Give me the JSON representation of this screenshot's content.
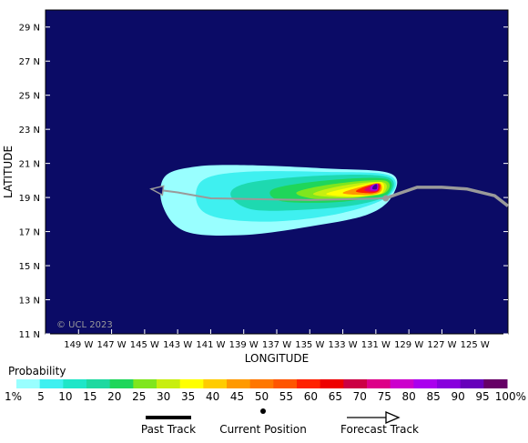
{
  "map": {
    "xlabel": "LONGITUDE",
    "ylabel": "LATITUDE",
    "background_color": "#0b0b66",
    "copyright": "© UCL 2023",
    "lon_range": [
      -151,
      -123
    ],
    "lat_range": [
      11,
      30
    ],
    "lon_ticks": [
      {
        "value": -149,
        "label": "149 W"
      },
      {
        "value": -147,
        "label": "147 W"
      },
      {
        "value": -145,
        "label": "145 W"
      },
      {
        "value": -143,
        "label": "143 W"
      },
      {
        "value": -141,
        "label": "141 W"
      },
      {
        "value": -139,
        "label": "139 W"
      },
      {
        "value": -137,
        "label": "137 W"
      },
      {
        "value": -135,
        "label": "135 W"
      },
      {
        "value": -133,
        "label": "133 W"
      },
      {
        "value": -131,
        "label": "131 W"
      },
      {
        "value": -129,
        "label": "129 W"
      },
      {
        "value": -127,
        "label": "127 W"
      },
      {
        "value": -125,
        "label": "125 W"
      }
    ],
    "lat_ticks": [
      {
        "value": 11,
        "label": "11 N"
      },
      {
        "value": 13,
        "label": "13 N"
      },
      {
        "value": 15,
        "label": "15 N"
      },
      {
        "value": 17,
        "label": "17 N"
      },
      {
        "value": 19,
        "label": "19 N"
      },
      {
        "value": 21,
        "label": "21 N"
      },
      {
        "value": 23,
        "label": "23 N"
      },
      {
        "value": 25,
        "label": "25 N"
      },
      {
        "value": 27,
        "label": "27 N"
      },
      {
        "value": 29,
        "label": "29 N"
      }
    ]
  },
  "chart_data": {
    "type": "heatmap",
    "xlabel": "LONGITUDE",
    "ylabel": "LATITUDE",
    "xlim": [
      -151,
      -123
    ],
    "ylim": [
      11,
      30
    ],
    "probability_contours": [
      {
        "level": 1,
        "color": "#99ffff",
        "outline": [
          [
            -130,
            19.1
          ],
          [
            -130.1,
            20.4
          ],
          [
            -134,
            20.7
          ],
          [
            -139,
            20.9
          ],
          [
            -142,
            20.8
          ],
          [
            -143.8,
            20.2
          ],
          [
            -143.9,
            18.5
          ],
          [
            -142.5,
            17.0
          ],
          [
            -139,
            16.8
          ],
          [
            -135,
            17.3
          ],
          [
            -131.5,
            18.0
          ]
        ]
      },
      {
        "level": 10,
        "color": "#3ff0f0",
        "outline": [
          [
            -130.2,
            19.1
          ],
          [
            -130.2,
            20.3
          ],
          [
            -134,
            20.5
          ],
          [
            -139,
            20.5
          ],
          [
            -141.5,
            20.0
          ],
          [
            -141.8,
            18.6
          ],
          [
            -140.5,
            17.8
          ],
          [
            -137,
            17.6
          ],
          [
            -133,
            18.1
          ]
        ]
      },
      {
        "level": 15,
        "color": "#1ed9b0",
        "outline": [
          [
            -130.2,
            19.2
          ],
          [
            -130.3,
            20.2
          ],
          [
            -134,
            20.3
          ],
          [
            -138.5,
            19.9
          ],
          [
            -139.8,
            19.2
          ],
          [
            -138.5,
            18.3
          ],
          [
            -135,
            18.3
          ],
          [
            -132,
            18.6
          ]
        ]
      },
      {
        "level": 20,
        "color": "#1fd65a",
        "outline": [
          [
            -130.3,
            19.2
          ],
          [
            -130.4,
            20.1
          ],
          [
            -134,
            20.0
          ],
          [
            -137.2,
            19.5
          ],
          [
            -136.8,
            18.8
          ],
          [
            -134,
            18.7
          ],
          [
            -131.8,
            18.9
          ]
        ]
      },
      {
        "level": 25,
        "color": "#7fe61e",
        "outline": [
          [
            -130.4,
            19.3
          ],
          [
            -130.5,
            20.0
          ],
          [
            -133.5,
            19.8
          ],
          [
            -135.8,
            19.3
          ],
          [
            -134.5,
            18.9
          ],
          [
            -132,
            19.0
          ]
        ]
      },
      {
        "level": 30,
        "color": "#c8ee10",
        "outline": [
          [
            -130.5,
            19.3
          ],
          [
            -130.6,
            19.9
          ],
          [
            -133,
            19.7
          ],
          [
            -134.8,
            19.2
          ],
          [
            -133,
            19.0
          ],
          [
            -131.5,
            19.1
          ]
        ]
      },
      {
        "level": 35,
        "color": "#ffff00",
        "outline": [
          [
            -130.6,
            19.3
          ],
          [
            -130.7,
            19.9
          ],
          [
            -132.5,
            19.6
          ],
          [
            -134.0,
            19.2
          ],
          [
            -132.3,
            19.05
          ],
          [
            -131.2,
            19.15
          ]
        ]
      },
      {
        "level": 45,
        "color": "#ff9900",
        "outline": [
          [
            -130.7,
            19.35
          ],
          [
            -130.8,
            19.85
          ],
          [
            -132.0,
            19.6
          ],
          [
            -133.0,
            19.25
          ],
          [
            -131.5,
            19.15
          ]
        ]
      },
      {
        "level": 55,
        "color": "#ff2200",
        "outline": [
          [
            -130.8,
            19.4
          ],
          [
            -130.8,
            19.8
          ],
          [
            -131.6,
            19.65
          ],
          [
            -132.2,
            19.35
          ],
          [
            -131.3,
            19.25
          ]
        ]
      },
      {
        "level": 65,
        "color": "#dd0066",
        "outline": [
          [
            -130.85,
            19.45
          ],
          [
            -130.85,
            19.8
          ],
          [
            -131.4,
            19.65
          ],
          [
            -131.7,
            19.42
          ],
          [
            -131.2,
            19.33
          ]
        ]
      },
      {
        "level": 80,
        "color": "#aa00ee",
        "outline": [
          [
            -130.9,
            19.45
          ],
          [
            -130.9,
            19.8
          ],
          [
            -131.25,
            19.7
          ],
          [
            -131.35,
            19.45
          ],
          [
            -131.1,
            19.4
          ]
        ]
      },
      {
        "level": 95,
        "color": "#440099",
        "outline": [
          [
            -130.95,
            19.5
          ],
          [
            -130.95,
            19.78
          ],
          [
            -131.15,
            19.68
          ],
          [
            -131.2,
            19.5
          ]
        ]
      }
    ],
    "past_track": [
      [
        -123,
        18.5
      ],
      [
        -123.8,
        19.1
      ],
      [
        -125.5,
        19.5
      ],
      [
        -127,
        19.6
      ],
      [
        -128.5,
        19.6
      ],
      [
        -129.7,
        19.2
      ],
      [
        -130.4,
        18.95
      ]
    ],
    "current_position": [
      -130.4,
      18.95
    ],
    "forecast_track": [
      [
        -130.4,
        18.95
      ],
      [
        -135,
        18.85
      ],
      [
        -138,
        18.9
      ],
      [
        -141,
        18.95
      ],
      [
        -143,
        19.3
      ],
      [
        -144.6,
        19.5
      ]
    ]
  },
  "scale": {
    "title": "Probability",
    "colors": [
      "#99ffff",
      "#3ff0f0",
      "#1fe6c8",
      "#1ed9a0",
      "#1fd65a",
      "#7fe61e",
      "#c8ee10",
      "#ffff00",
      "#ffcc00",
      "#ff9900",
      "#ff7700",
      "#ff5500",
      "#ff2200",
      "#ee0000",
      "#cc0044",
      "#dd0088",
      "#cc00cc",
      "#aa00ee",
      "#8800dd",
      "#6600bb",
      "#660066"
    ],
    "labels": [
      "1%",
      "5",
      "10",
      "15",
      "20",
      "25",
      "30",
      "35",
      "40",
      "45",
      "50",
      "55",
      "60",
      "65",
      "70",
      "75",
      "80",
      "85",
      "90",
      "95",
      "100%"
    ]
  },
  "legend": {
    "past_label": "Past Track",
    "current_label": "Current Position",
    "forecast_label": "Forecast Track"
  }
}
